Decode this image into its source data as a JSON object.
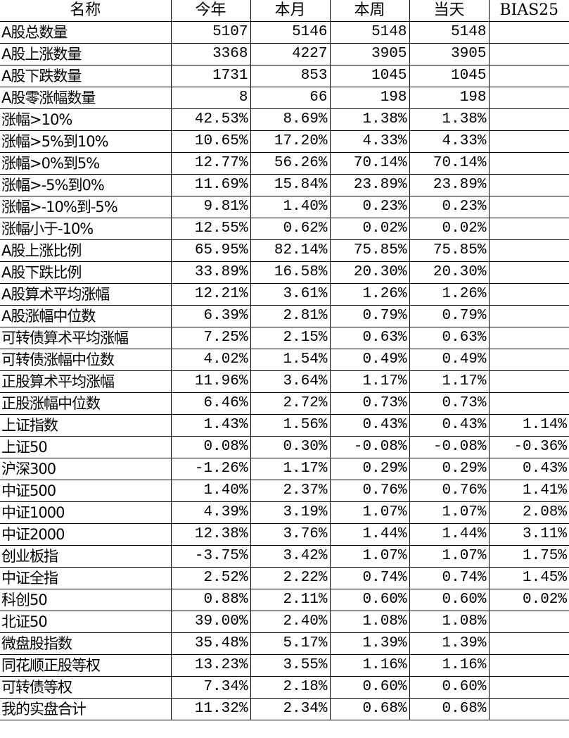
{
  "columns": [
    "名称",
    "今年",
    "本月",
    "本周",
    "当天",
    "BIAS25"
  ],
  "rows": [
    [
      "A股总数量",
      "5107",
      "5146",
      "5148",
      "5148",
      ""
    ],
    [
      "A股上涨数量",
      "3368",
      "4227",
      "3905",
      "3905",
      ""
    ],
    [
      "A股下跌数量",
      "1731",
      "853",
      "1045",
      "1045",
      ""
    ],
    [
      "A股零涨幅数量",
      "8",
      "66",
      "198",
      "198",
      ""
    ],
    [
      "涨幅>10%",
      "42.53%",
      "8.69%",
      "1.38%",
      "1.38%",
      ""
    ],
    [
      "涨幅>5%到10%",
      "10.65%",
      "17.20%",
      "4.33%",
      "4.33%",
      ""
    ],
    [
      "涨幅>0%到5%",
      "12.77%",
      "56.26%",
      "70.14%",
      "70.14%",
      ""
    ],
    [
      "涨幅>-5%到0%",
      "11.69%",
      "15.84%",
      "23.89%",
      "23.89%",
      ""
    ],
    [
      "涨幅>-10%到-5%",
      "9.81%",
      "1.40%",
      "0.23%",
      "0.23%",
      ""
    ],
    [
      "涨幅小于-10%",
      "12.55%",
      "0.62%",
      "0.02%",
      "0.02%",
      ""
    ],
    [
      "A股上涨比例",
      "65.95%",
      "82.14%",
      "75.85%",
      "75.85%",
      ""
    ],
    [
      "A股下跌比例",
      "33.89%",
      "16.58%",
      "20.30%",
      "20.30%",
      ""
    ],
    [
      "A股算术平均涨幅",
      "12.21%",
      "3.61%",
      "1.26%",
      "1.26%",
      ""
    ],
    [
      "A股涨幅中位数",
      "6.39%",
      "2.81%",
      "0.79%",
      "0.79%",
      ""
    ],
    [
      "可转债算术平均涨幅",
      "7.25%",
      "2.15%",
      "0.63%",
      "0.63%",
      ""
    ],
    [
      "可转债涨幅中位数",
      "4.02%",
      "1.54%",
      "0.49%",
      "0.49%",
      ""
    ],
    [
      "正股算术平均涨幅",
      "11.96%",
      "3.64%",
      "1.17%",
      "1.17%",
      ""
    ],
    [
      "正股涨幅中位数",
      "6.46%",
      "2.72%",
      "0.73%",
      "0.73%",
      ""
    ],
    [
      "上证指数",
      "1.43%",
      "1.56%",
      "0.43%",
      "0.43%",
      "1.14%"
    ],
    [
      "上证50",
      "0.08%",
      "0.30%",
      "-0.08%",
      "-0.08%",
      "-0.36%"
    ],
    [
      "沪深300",
      "-1.26%",
      "1.17%",
      "0.29%",
      "0.29%",
      "0.43%"
    ],
    [
      "中证500",
      "1.40%",
      "2.37%",
      "0.76%",
      "0.76%",
      "1.41%"
    ],
    [
      "中证1000",
      "4.39%",
      "3.19%",
      "1.07%",
      "1.07%",
      "2.08%"
    ],
    [
      "中证2000",
      "12.38%",
      "3.76%",
      "1.44%",
      "1.44%",
      "3.11%"
    ],
    [
      "创业板指",
      "-3.75%",
      "3.42%",
      "1.07%",
      "1.07%",
      "1.75%"
    ],
    [
      "中证全指",
      "2.52%",
      "2.22%",
      "0.74%",
      "0.74%",
      "1.45%"
    ],
    [
      "科创50",
      "0.88%",
      "2.11%",
      "0.60%",
      "0.60%",
      "0.02%"
    ],
    [
      "北证50",
      "39.00%",
      "2.40%",
      "1.08%",
      "1.08%",
      ""
    ],
    [
      "微盘股指数",
      "35.48%",
      "5.17%",
      "1.39%",
      "1.39%",
      ""
    ],
    [
      "同花顺正股等权",
      "13.23%",
      "3.55%",
      "1.16%",
      "1.16%",
      ""
    ],
    [
      "可转债等权",
      "7.34%",
      "2.18%",
      "0.60%",
      "0.60%",
      ""
    ],
    [
      "我的实盘合计",
      "11.32%",
      "2.34%",
      "0.68%",
      "0.68%",
      ""
    ]
  ]
}
